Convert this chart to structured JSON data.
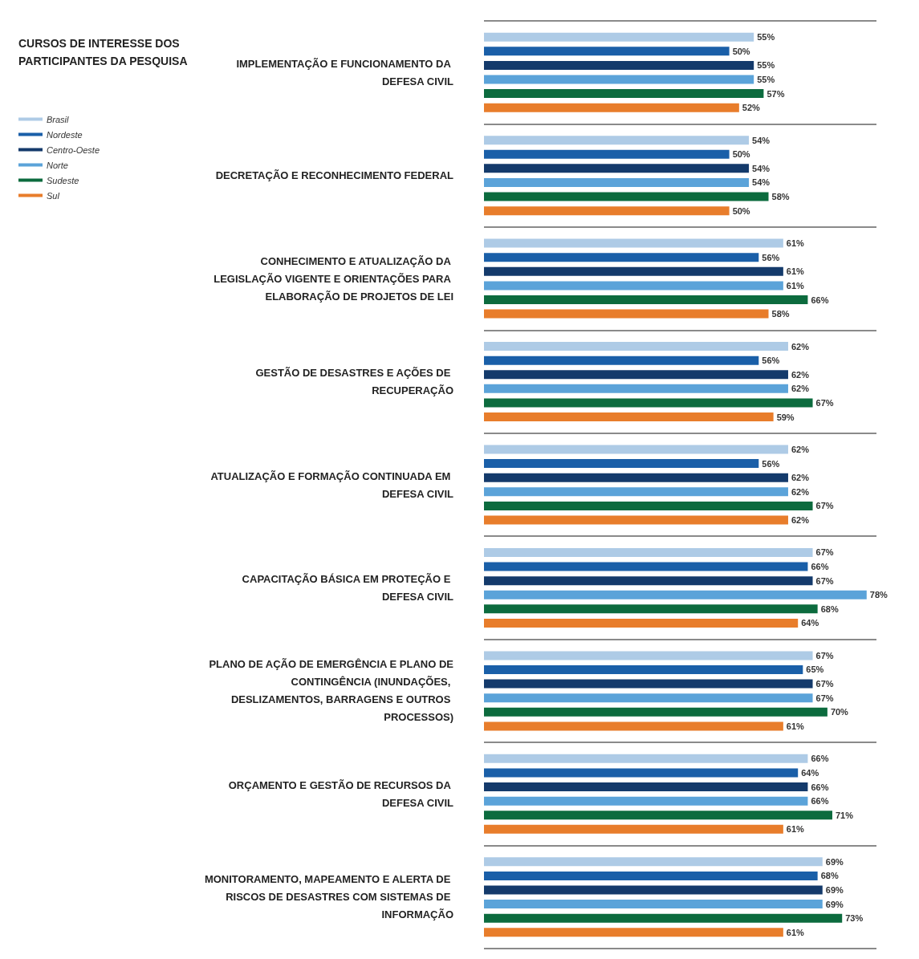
{
  "chart_data": {
    "type": "bar",
    "orientation": "horizontal",
    "title": "CURSOS DE INTERESSE DOS PARTICIPANTES DA PESQUISA",
    "categories": [
      "IMPLEMENTAÇÃO E FUNCIONAMENTO DA DEFESA CIVIL",
      "DECRETAÇÃO E RECONHECIMENTO FEDERAL",
      "CONHECIMENTO E ATUALIZAÇÃO DA LEGISLAÇÃO VIGENTE E ORIENTAÇÕES PARA ELABORAÇÃO DE PROJETOS DE LEI",
      "GESTÃO DE DESASTRES E AÇÕES DE RECUPERAÇÃO",
      "ATUALIZAÇÃO E FORMAÇÃO CONTINUADA EM DEFESA CIVIL",
      "CAPACITAÇÃO BÁSICA EM PROTEÇÃO E DEFESA CIVIL",
      "PLANO DE AÇÃO DE EMERGÊNCIA E PLANO DE CONTINGÊNCIA (INUNDAÇÕES, DESLIZAMENTOS, BARRAGENS E OUTROS PROCESSOS)",
      "ORÇAMENTO E GESTÃO DE RECURSOS DA DEFESA CIVIL",
      "MONITORAMENTO, MAPEAMENTO E ALERTA DE RISCOS DE DESASTRES COM SISTEMAS DE INFORMAÇÃO"
    ],
    "series": [
      {
        "name": "Brasil",
        "color": "#aecbe6",
        "values": [
          55,
          54,
          61,
          62,
          62,
          67,
          67,
          66,
          69
        ],
        "value_labels": [
          "55%",
          "54%",
          "61%",
          "62%",
          "62%",
          "67%",
          "67%",
          "66%",
          "69%"
        ]
      },
      {
        "name": "Nordeste",
        "color": "#1a5fa8",
        "values": [
          50,
          50,
          56,
          56,
          56,
          66,
          65,
          64,
          68
        ],
        "value_labels": [
          "50%",
          "50%",
          "56%",
          "56%",
          "56%",
          "66%",
          "65%",
          "64%",
          "68%"
        ]
      },
      {
        "name": "Centro-Oeste",
        "color": "#143a6b",
        "values": [
          55,
          54,
          61,
          62,
          62,
          67,
          67,
          66,
          69
        ],
        "value_labels": [
          "55%",
          "54%",
          "61%",
          "62%",
          "62%",
          "67%",
          "67%",
          "66%",
          "69%"
        ]
      },
      {
        "name": "Norte",
        "color": "#5ba3d9",
        "values": [
          55,
          54,
          61,
          62,
          62,
          78,
          67,
          66,
          69
        ],
        "value_labels": [
          "55%",
          "54%",
          "61%",
          "62%",
          "62%",
          "78%",
          "67%",
          "66%",
          "69%"
        ]
      },
      {
        "name": "Sudeste",
        "color": "#0c6b3e",
        "values": [
          57,
          58,
          66,
          67,
          67,
          68,
          70,
          71,
          73
        ],
        "value_labels": [
          "57%",
          "58%",
          "66%",
          "67%",
          "67%",
          "68%",
          "70%",
          "71%",
          "73%"
        ]
      },
      {
        "name": "Sul",
        "color": "#e87d2b",
        "values": [
          52,
          50,
          58,
          59,
          62,
          64,
          61,
          61,
          61
        ],
        "value_labels": [
          "52%",
          "50%",
          "58%",
          "59%",
          "62%",
          "64%",
          "61%",
          "61%",
          "61%"
        ]
      }
    ],
    "legend": "left",
    "grid": "y",
    "tick_labels": "y"
  }
}
